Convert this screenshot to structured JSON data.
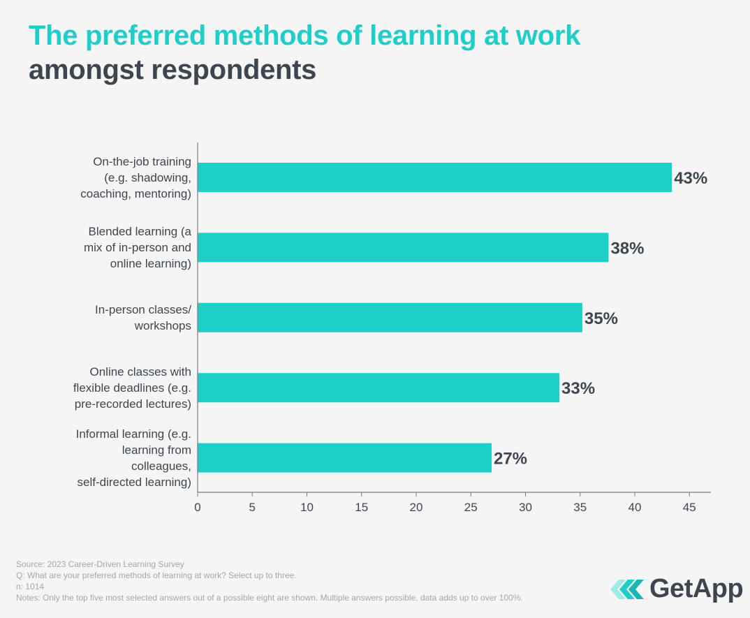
{
  "title": {
    "line1": "The preferred methods of learning at work",
    "line2": "amongst respondents"
  },
  "chart_data": {
    "type": "bar",
    "orientation": "horizontal",
    "categories": [
      "On-the-job training (e.g. shadowing, coaching, mentoring)",
      "Blended learning (a mix of in-person and online learning)",
      "In-person classes/ workshops",
      "Online classes with flexible deadlines (e.g. pre-recorded lectures)",
      "Informal learning (e.g. learning from colleagues, self-directed learning)"
    ],
    "category_lines": [
      [
        "On-the-job training",
        "(e.g. shadowing,",
        "coaching, mentoring)"
      ],
      [
        "Blended learning (a",
        "mix of in-person and",
        "online learning)"
      ],
      [
        "In-person classes/",
        "workshops"
      ],
      [
        "Online classes with",
        "flexible deadlines (e.g.",
        "pre-recorded lectures)"
      ],
      [
        "Informal learning (e.g.",
        "learning from",
        "colleagues,",
        "self-directed learning)"
      ]
    ],
    "values": [
      43.4,
      37.6,
      35.2,
      33.1,
      26.9
    ],
    "value_labels": [
      "43%",
      "38%",
      "35%",
      "33%",
      "27%"
    ],
    "xlim": [
      0,
      47
    ],
    "xticks": [
      0,
      5,
      10,
      15,
      20,
      25,
      30,
      35,
      40,
      45
    ],
    "xlabel": "",
    "ylabel": "",
    "grid": false,
    "bar_color": "#1ecfc9"
  },
  "footer": {
    "source": "Source: 2023 Career-Driven Learning  Survey",
    "question": "Q: What are your preferred methods of learning at work? Select up to three.",
    "n": "n: 1014",
    "notes": "Notes: Only the top five most selected answers out of a possible eight are shown. Multiple answers possible, data adds up to over 100%."
  },
  "logo": {
    "text": "GetApp",
    "icon": "getapp-chevrons-icon",
    "colors": [
      "#1ecfc9",
      "#3d4650"
    ]
  }
}
